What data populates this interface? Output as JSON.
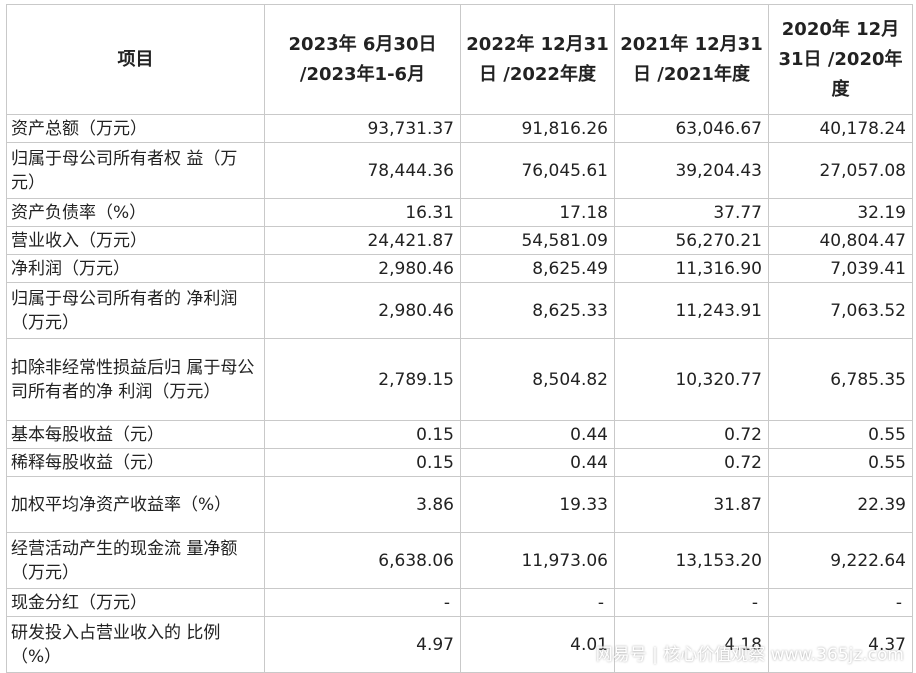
{
  "headers": [
    "项目",
    "2023年 6月30日 /2023年1-6月",
    "2022年 12月31日 /2022年度",
    "2021年 12月31日 /2021年度",
    "2020年 12月31日 /2020年度"
  ],
  "rows": [
    {
      "label": "资产总额（万元）",
      "values": [
        "93,731.37",
        "91,816.26",
        "63,046.67",
        "40,178.24"
      ]
    },
    {
      "label": "归属于母公司所有者权 益（万元）",
      "values": [
        "78,444.36",
        "76,045.61",
        "39,204.43",
        "27,057.08"
      ]
    },
    {
      "label": "资产负债率（%）",
      "values": [
        "16.31",
        "17.18",
        "37.77",
        "32.19"
      ]
    },
    {
      "label": "营业收入（万元）",
      "values": [
        "24,421.87",
        "54,581.09",
        "56,270.21",
        "40,804.47"
      ]
    },
    {
      "label": "净利润（万元）",
      "values": [
        "2,980.46",
        "8,625.49",
        "11,316.90",
        "7,039.41"
      ]
    },
    {
      "label": "归属于母公司所有者的 净利润（万元）",
      "values": [
        "2,980.46",
        "8,625.33",
        "11,243.91",
        "7,063.52"
      ]
    },
    {
      "label": "扣除非经常性损益后归 属于母公司所有者的净 利润（万元）",
      "values": [
        "2,789.15",
        "8,504.82",
        "10,320.77",
        "6,785.35"
      ]
    },
    {
      "label": "基本每股收益（元）",
      "values": [
        "0.15",
        "0.44",
        "0.72",
        "0.55"
      ]
    },
    {
      "label": "稀释每股收益（元）",
      "values": [
        "0.15",
        "0.44",
        "0.72",
        "0.55"
      ]
    },
    {
      "label": "加权平均净资产收益率（%）",
      "values": [
        "3.86",
        "19.33",
        "31.87",
        "22.39"
      ]
    },
    {
      "label": "经营活动产生的现金流 量净额（万元）",
      "values": [
        "6,638.06",
        "11,973.06",
        "13,153.20",
        "9,222.64"
      ]
    },
    {
      "label": "现金分红（万元）",
      "values": [
        "-",
        "-",
        "-",
        "-"
      ]
    },
    {
      "label": "研发投入占营业收入的 比例（%）",
      "values": [
        "4.97",
        "4.01",
        "4.18",
        "4.37"
      ]
    }
  ],
  "watermark": "网易号 | 核心价值观察 www.365jz.com"
}
